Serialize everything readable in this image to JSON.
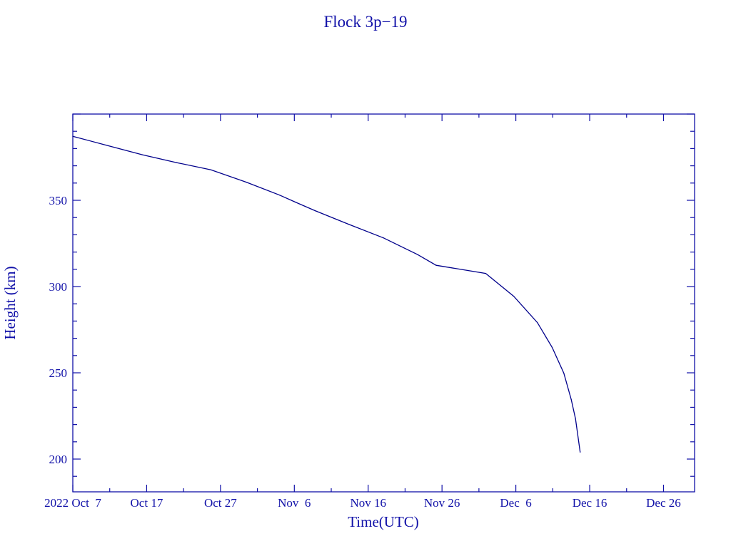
{
  "chart_data": {
    "type": "line",
    "title": "Flock 3p−19",
    "xlabel": "Time(UTC)",
    "ylabel": "Height (km)",
    "xlim": [
      "2022-10-07T00:00",
      "2022-12-30T05:00"
    ],
    "ylim": [
      181,
      400
    ],
    "grid": false,
    "x_ticks": [
      {
        "date": "2022-10-07",
        "label": "2022 Oct  7"
      },
      {
        "date": "2022-10-17",
        "label": "Oct 17"
      },
      {
        "date": "2022-10-27",
        "label": "Oct 27"
      },
      {
        "date": "2022-11-06",
        "label": "Nov  6"
      },
      {
        "date": "2022-11-16",
        "label": "Nov 16"
      },
      {
        "date": "2022-11-26",
        "label": "Nov 26"
      },
      {
        "date": "2022-12-06",
        "label": "Dec  6"
      },
      {
        "date": "2022-12-16",
        "label": "Dec 16"
      },
      {
        "date": "2022-12-26",
        "label": "Dec 26"
      }
    ],
    "y_ticks": [
      {
        "value": 200,
        "label": "200"
      },
      {
        "value": 250,
        "label": "250"
      },
      {
        "value": 300,
        "label": "300"
      },
      {
        "value": 350,
        "label": "350"
      }
    ],
    "colors": {
      "axes": "#1010a8",
      "line": "#00008b"
    },
    "series": [
      {
        "x": [
          "2022-10-07T00:00",
          "2022-10-11T12:00",
          "2022-10-16T10:00",
          "2022-10-21T02:00",
          "2022-10-25T17:00",
          "2022-10-30T12:00",
          "2022-11-04T00:00",
          "2022-11-06T05:00",
          "2022-11-08T19:00",
          "2022-11-13T10:00",
          "2022-11-18T02:00",
          "2022-11-22T17:00",
          "2022-11-25T05:00",
          "2022-12-01T22:00",
          "2022-12-05T17:00",
          "2022-12-08T22:00",
          "2022-12-10T22:00",
          "2022-12-12T12:00",
          "2022-12-13T12:00",
          "2022-12-14T02:00",
          "2022-12-14T17:00"
        ],
        "y": [
          387.1,
          382.0,
          376.4,
          371.8,
          367.7,
          360.5,
          353.0,
          348.8,
          344.0,
          336.0,
          328.2,
          318.5,
          312.3,
          307.6,
          294.4,
          279.1,
          264.7,
          249.8,
          234.5,
          223.3,
          204.0
        ]
      }
    ]
  }
}
